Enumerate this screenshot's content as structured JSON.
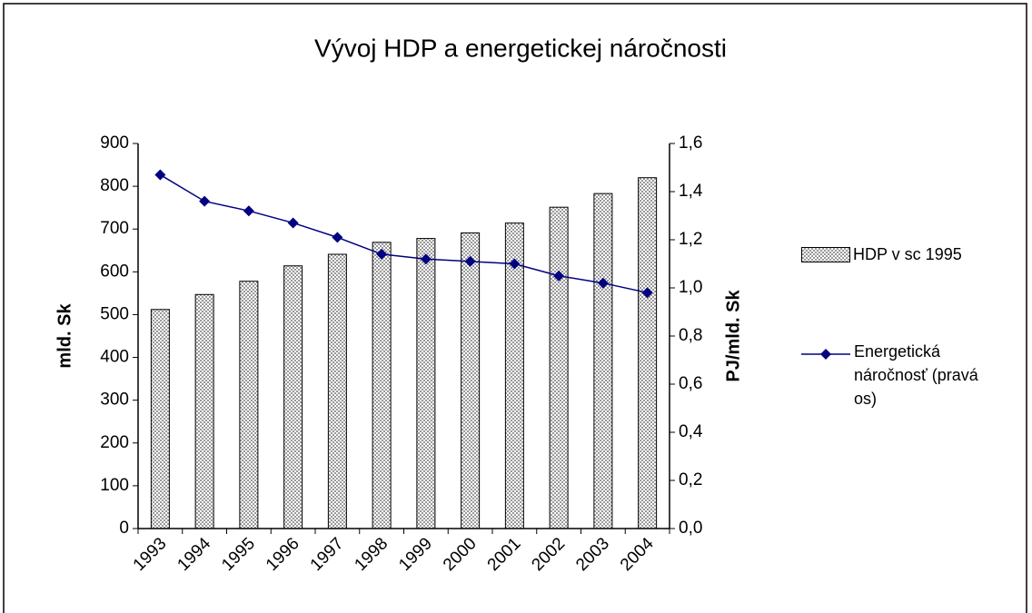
{
  "chart_data": {
    "type": "bar-line",
    "title": "Vývoj HDP a energetickej náročnosti",
    "ylabel": "mld. Sk",
    "y2label": "PJ/mld. Sk",
    "categories": [
      "1993",
      "1994",
      "1995",
      "1996",
      "1997",
      "1998",
      "1999",
      "2000",
      "2001",
      "2002",
      "2003",
      "2004"
    ],
    "series": [
      {
        "name": "HDP v sc  1995",
        "type": "bar",
        "color": "#c0c0c0",
        "values": [
          512,
          547,
          578,
          614,
          641,
          669,
          678,
          691,
          714,
          751,
          783,
          820
        ]
      },
      {
        "name": "Energetická náročnosť (pravá os)",
        "type": "line",
        "axis": "y2",
        "color": "#000080",
        "values": [
          1.47,
          1.36,
          1.32,
          1.27,
          1.21,
          1.14,
          1.12,
          1.11,
          1.1,
          1.05,
          1.02,
          0.98
        ]
      }
    ],
    "ylim": [
      0,
      900
    ],
    "yticks": [
      0,
      100,
      200,
      300,
      400,
      500,
      600,
      700,
      800,
      900
    ],
    "y2lim": [
      0,
      1.6
    ],
    "y2ticks": [
      {
        "value": 0,
        "label": "0,0"
      },
      {
        "value": 0.2,
        "label": "0,2"
      },
      {
        "value": 0.4,
        "label": "0,4"
      },
      {
        "value": 0.6,
        "label": "0,6"
      },
      {
        "value": 0.8,
        "label": "0,8"
      },
      {
        "value": 1.0,
        "label": "1,0"
      },
      {
        "value": 1.2,
        "label": "1,2"
      },
      {
        "value": 1.4,
        "label": "1,4"
      },
      {
        "value": 1.6,
        "label": "1,6"
      }
    ],
    "legend": "right"
  }
}
